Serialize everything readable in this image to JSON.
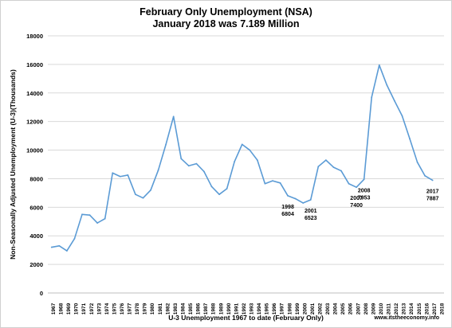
{
  "chart_data": {
    "type": "line",
    "title": "February Only Unemployment (NSA)",
    "subtitle": "January 2018 was 7.189 Million",
    "xlabel": "U-3 Unemployment 1967 to date  (February Only)",
    "ylabel": "Non-Seasonally Adjusted Unemployment (U-3)(Thousands)",
    "ylim": [
      0,
      18000
    ],
    "yticks": [
      "0",
      "2000",
      "4000",
      "6000",
      "8000",
      "10000",
      "12000",
      "14000",
      "16000",
      "18000"
    ],
    "x": [
      "1967",
      "1968",
      "1969",
      "1970",
      "1971",
      "1972",
      "1973",
      "1974",
      "1975",
      "1976",
      "1977",
      "1978",
      "1979",
      "1980",
      "1981",
      "1982",
      "1983",
      "1984",
      "1985",
      "1986",
      "1987",
      "1988",
      "1989",
      "1990",
      "1991",
      "1992",
      "1993",
      "1994",
      "1995",
      "1996",
      "1997",
      "1998",
      "1999",
      "2000",
      "2001",
      "2002",
      "2003",
      "2004",
      "2005",
      "2006",
      "2007",
      "2008",
      "2009",
      "2010",
      "2011",
      "2012",
      "2013",
      "2014",
      "2015",
      "2016",
      "2017",
      "2018"
    ],
    "series": [
      {
        "name": "",
        "color": "#5b9bd5",
        "values": [
          3200,
          3300,
          2950,
          3800,
          5500,
          5450,
          4900,
          5200,
          8400,
          8150,
          8250,
          6900,
          6650,
          7200,
          8600,
          10400,
          12350,
          9400,
          8900,
          9050,
          8500,
          7450,
          6900,
          7300,
          9200,
          10400,
          10000,
          9300,
          7650,
          7850,
          7700,
          6804,
          6600,
          6300,
          6523,
          8850,
          9300,
          8800,
          8550,
          7650,
          7400,
          7953,
          13700,
          15950,
          14550,
          13450,
          12400,
          10800,
          9150,
          8200,
          7887,
          null
        ]
      }
    ],
    "annotations": [
      {
        "year": "1998",
        "line1": "1998",
        "line2": "6804"
      },
      {
        "year": "2001",
        "line1": "2001",
        "line2": "6523"
      },
      {
        "year": "2007",
        "line1": "2007",
        "line2": "7400"
      },
      {
        "year": "2008",
        "line1": "2008",
        "line2": "7953"
      },
      {
        "year": "2017",
        "line1": "2017",
        "line2": "7887"
      }
    ],
    "grid": true,
    "legend": "none"
  },
  "footer": "www.itstheeconomy.info"
}
